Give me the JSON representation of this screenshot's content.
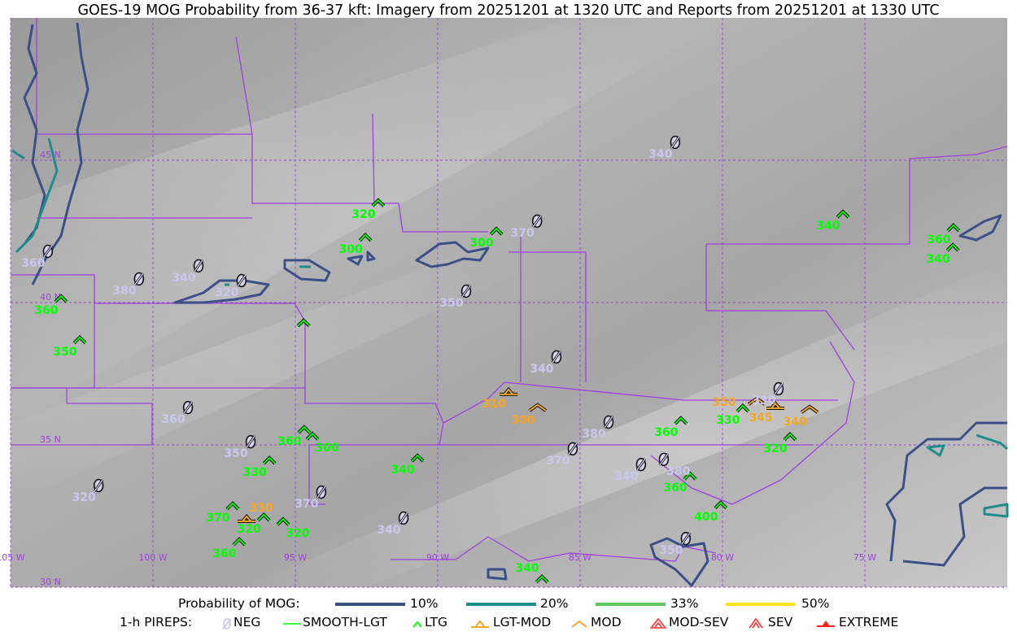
{
  "title": "GOES-19 MOG Probability from 36-37 kft: Imagery from 20251201 at 1320 UTC and Reports from 20251201 at 1330 UTC",
  "map": {
    "lat_labels": [
      {
        "lat": 45,
        "text": "45 N"
      },
      {
        "lat": 40,
        "text": "40 N"
      },
      {
        "lat": 35,
        "text": "35 N"
      },
      {
        "lat": 30,
        "text": "30 N"
      }
    ],
    "lon_labels": [
      {
        "lon": -105,
        "text": "105 W"
      },
      {
        "lon": -100,
        "text": "100 W"
      },
      {
        "lon": -95,
        "text": "95 W"
      },
      {
        "lon": -90,
        "text": "90 W"
      },
      {
        "lon": -85,
        "text": "85 W"
      },
      {
        "lon": -80,
        "text": "80 W"
      },
      {
        "lon": -75,
        "text": "75 W"
      }
    ],
    "extent": {
      "lon": [
        -105,
        -70
      ],
      "lat": [
        30,
        50
      ]
    },
    "colors": {
      "grid": "#a040e0",
      "borders": "#a040e0",
      "prob10": "#3a5088",
      "prob20": "#1e8c8c",
      "prob33": "#5cc85c",
      "prob50": "#ffe020",
      "neg": "#c8c8f0",
      "ltg": "#00ff00",
      "lgtmod": "#f5a623",
      "mod": "#f5a623"
    }
  },
  "reports": [
    {
      "type": "NEG",
      "lon": -103.69,
      "lat": 41.8,
      "label": "360"
    },
    {
      "type": "NEG",
      "lon": -100.49,
      "lat": 40.83,
      "label": "380"
    },
    {
      "type": "NEG",
      "lon": -98.4,
      "lat": 41.29,
      "label": "340"
    },
    {
      "type": "NEG",
      "lon": -96.89,
      "lat": 40.77,
      "label": "320"
    },
    {
      "type": "NEG",
      "lon": -98.77,
      "lat": 36.31,
      "label": "360"
    },
    {
      "type": "NEG",
      "lon": -96.57,
      "lat": 35.11,
      "label": "350"
    },
    {
      "type": "NEG",
      "lon": -101.91,
      "lat": 33.57,
      "label": "320"
    },
    {
      "type": "NEG",
      "lon": -94.09,
      "lat": 33.34,
      "label": "370"
    },
    {
      "type": "NEG",
      "lon": -91.2,
      "lat": 32.43,
      "label": "340"
    },
    {
      "type": "NEG",
      "lon": -89.0,
      "lat": 40.4,
      "label": "350"
    },
    {
      "type": "NEG",
      "lon": -86.51,
      "lat": 42.86,
      "label": "370"
    },
    {
      "type": "NEG",
      "lon": -85.83,
      "lat": 38.09,
      "label": "340"
    },
    {
      "type": "NEG",
      "lon": -84.0,
      "lat": 35.8,
      "label": "380"
    },
    {
      "type": "NEG",
      "lon": -85.26,
      "lat": 34.86,
      "label": "370"
    },
    {
      "type": "NEG",
      "lon": -82.86,
      "lat": 34.31,
      "label": "340"
    },
    {
      "type": "NEG",
      "lon": -82.06,
      "lat": 34.49,
      "label": "380"
    },
    {
      "type": "NEG",
      "lon": -81.29,
      "lat": 31.71,
      "label": "350"
    },
    {
      "type": "NEG",
      "lon": -81.66,
      "lat": 45.63,
      "label": "340"
    },
    {
      "type": "NEG",
      "lon": -78.03,
      "lat": 36.97,
      "label": "330"
    },
    {
      "type": "LTG",
      "lon": -92.09,
      "lat": 43.51,
      "label": "320"
    },
    {
      "type": "LTG",
      "lon": -92.54,
      "lat": 42.29,
      "label": "300"
    },
    {
      "type": "LTG",
      "lon": -87.94,
      "lat": 42.51,
      "label": "300"
    },
    {
      "type": "LTG",
      "lon": -103.23,
      "lat": 40.14,
      "label": "360"
    },
    {
      "type": "LTG",
      "lon": -102.57,
      "lat": 38.69,
      "label": "350"
    },
    {
      "type": "LTG",
      "lon": -94.71,
      "lat": 39.29,
      "label": ""
    },
    {
      "type": "LTG",
      "lon": -94.69,
      "lat": 35.54,
      "label": "360"
    },
    {
      "type": "LTG",
      "lon": -94.4,
      "lat": 35.31,
      "label": "300"
    },
    {
      "type": "LTG",
      "lon": -95.91,
      "lat": 34.46,
      "label": "330"
    },
    {
      "type": "LTG",
      "lon": -97.2,
      "lat": 32.86,
      "label": "370"
    },
    {
      "type": "LTG",
      "lon": -96.11,
      "lat": 32.46,
      "label": "320"
    },
    {
      "type": "LTG",
      "lon": -95.43,
      "lat": 32.31,
      "label": "320"
    },
    {
      "type": "LTG",
      "lon": -96.97,
      "lat": 31.6,
      "label": "360"
    },
    {
      "type": "LTG",
      "lon": -90.71,
      "lat": 34.54,
      "label": "340"
    },
    {
      "type": "LTG",
      "lon": -86.34,
      "lat": 30.29,
      "label": "340"
    },
    {
      "type": "LTG",
      "lon": -81.46,
      "lat": 35.86,
      "label": "360"
    },
    {
      "type": "LTG",
      "lon": -81.14,
      "lat": 33.91,
      "label": "360"
    },
    {
      "type": "LTG",
      "lon": -80.06,
      "lat": 32.89,
      "label": "400"
    },
    {
      "type": "LTG",
      "lon": -79.29,
      "lat": 36.29,
      "label": "330"
    },
    {
      "type": "LTG",
      "lon": -77.63,
      "lat": 35.29,
      "label": "320"
    },
    {
      "type": "LTG",
      "lon": -75.77,
      "lat": 43.11,
      "label": "340"
    },
    {
      "type": "LTG",
      "lon": -71.91,
      "lat": 41.94,
      "label": "340"
    },
    {
      "type": "LTG",
      "lon": -71.89,
      "lat": 42.63,
      "label": "360"
    },
    {
      "type": "LGT-MOD",
      "lon": -87.51,
      "lat": 36.86,
      "label": "310"
    },
    {
      "type": "LGT-MOD",
      "lon": -96.71,
      "lat": 32.4,
      "label": "330"
    },
    {
      "type": "LGT-MOD",
      "lon": -78.14,
      "lat": 36.37,
      "label": "345"
    },
    {
      "type": "MOD",
      "lon": -86.49,
      "lat": 36.29,
      "label": "300"
    },
    {
      "type": "MOD",
      "lon": -78.8,
      "lat": 36.51,
      "label": "350"
    },
    {
      "type": "MOD",
      "lon": -76.94,
      "lat": 36.23,
      "label": "340"
    }
  ],
  "legend": {
    "prob_title": "Probability of MOG:",
    "prob_items": [
      {
        "label": "10%",
        "color": "#3a5088"
      },
      {
        "label": "20%",
        "color": "#1e8c8c"
      },
      {
        "label": "33%",
        "color": "#5cc85c"
      },
      {
        "label": "50%",
        "color": "#ffe020"
      }
    ],
    "pirep_title": "1-h PIREPS:",
    "pirep_items": [
      {
        "label": "NEG",
        "icon": "neg-icon",
        "color": "#c8c8f0"
      },
      {
        "label": "SMOOTH-LGT",
        "icon": "smooth-lgt-icon",
        "color": "#00ff00"
      },
      {
        "label": "LTG",
        "icon": "ltg-icon",
        "color": "#00ff00"
      },
      {
        "label": "LGT-MOD",
        "icon": "lgt-mod-icon",
        "color": "#f5a623"
      },
      {
        "label": "MOD",
        "icon": "mod-icon",
        "color": "#f5a623"
      },
      {
        "label": "MOD-SEV",
        "icon": "mod-sev-icon",
        "color": "#ff3030"
      },
      {
        "label": "SEV",
        "icon": "sev-icon",
        "color": "#ff3030"
      },
      {
        "label": "EXTREME",
        "icon": "extreme-icon",
        "color": "#ff2020"
      }
    ]
  }
}
